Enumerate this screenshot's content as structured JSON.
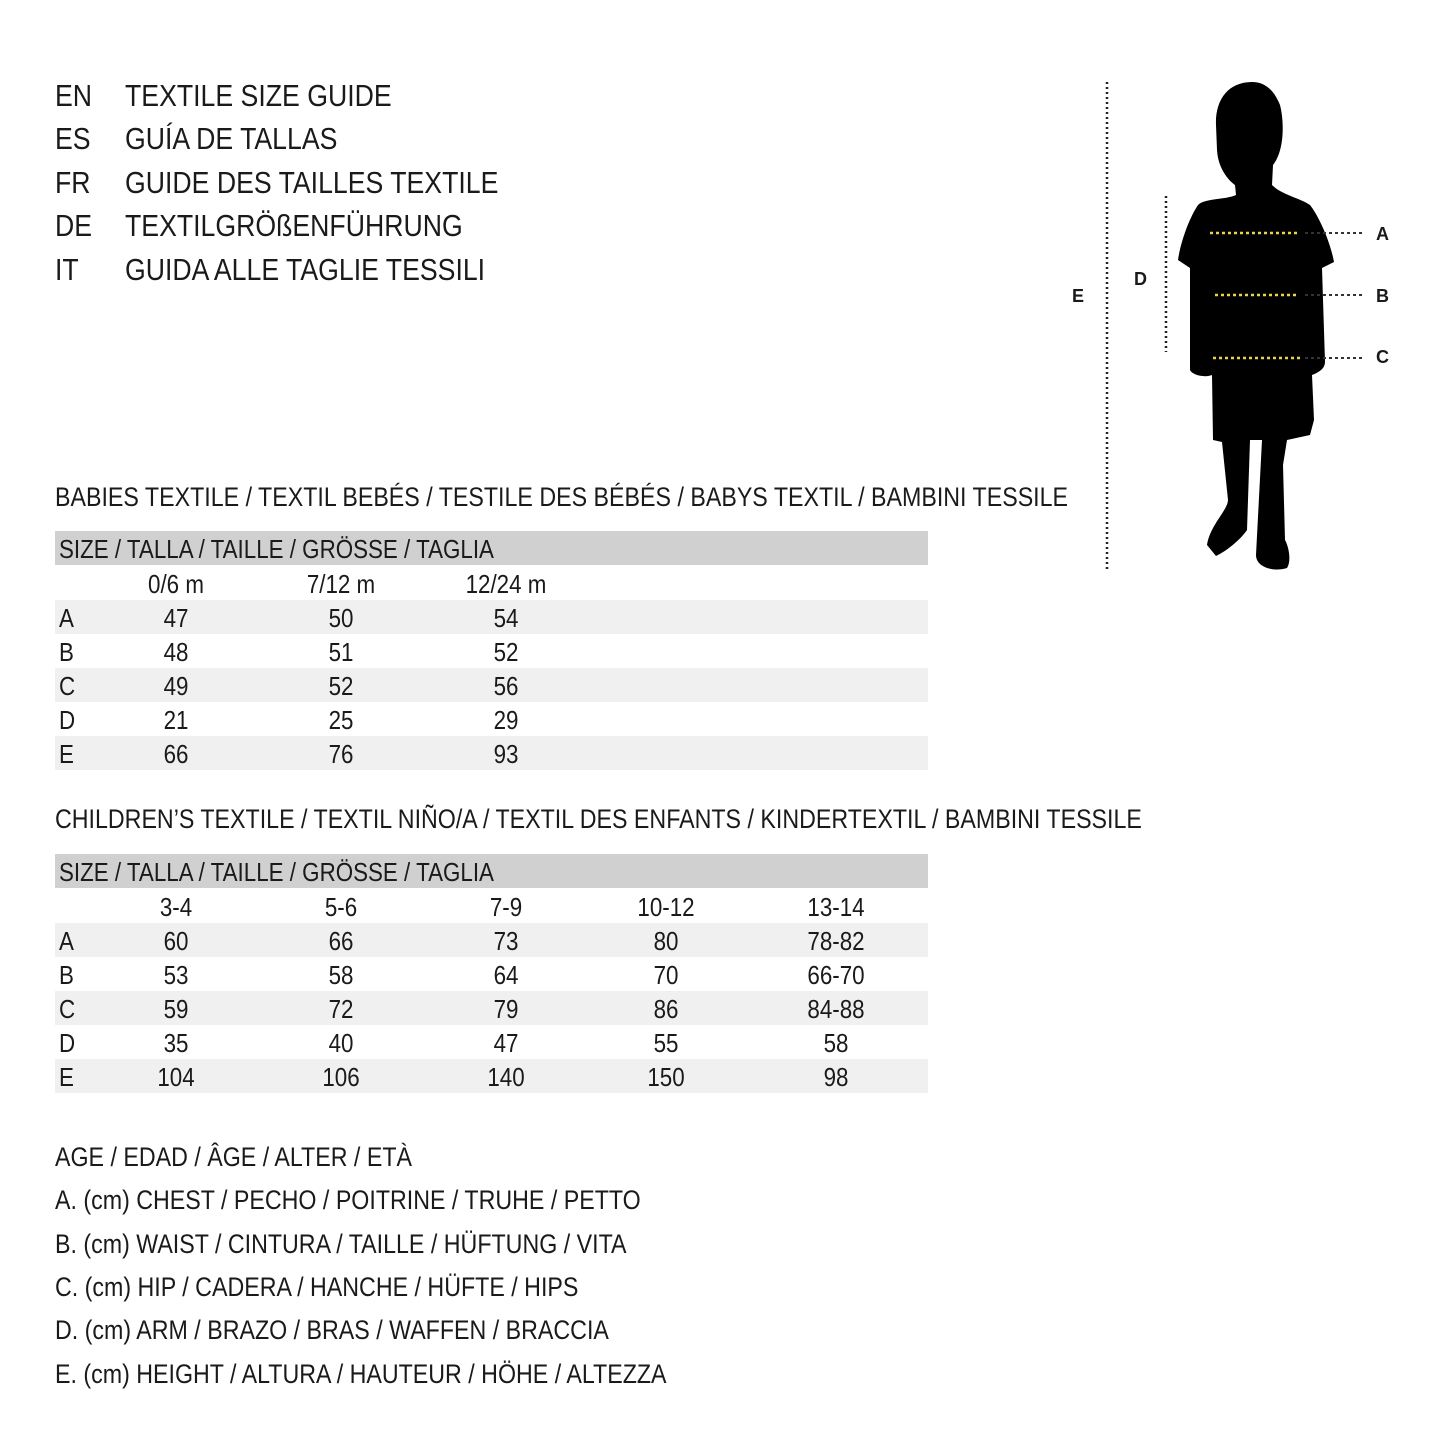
{
  "titles": [
    {
      "code": "EN",
      "text": "TEXTILE SIZE GUIDE"
    },
    {
      "code": "ES",
      "text": "GUÍA DE TALLAS"
    },
    {
      "code": "FR",
      "text": "GUIDE DES TAILLES TEXTILE"
    },
    {
      "code": "DE",
      "text": "TEXTILGRÖßENFÜHRUNG"
    },
    {
      "code": "IT",
      "text": "GUIDA ALLE TAGLIE TESSILI"
    }
  ],
  "figure": {
    "labels": {
      "A": "A",
      "B": "B",
      "C": "C",
      "D": "D",
      "E": "E"
    },
    "measure_color": "#e8d44a"
  },
  "babies": {
    "heading": "BABIES TEXTILE / TEXTIL BEBÉS / TESTILE DES BÉBÉS / BABYS TEXTIL / BAMBINI TESSILE",
    "size_header": "SIZE / TALLA / TAILLE / GRÖSSE / TAGLIA",
    "columns": [
      "0/6 m",
      "7/12 m",
      "12/24 m"
    ],
    "rows": [
      {
        "label": "A",
        "values": [
          "47",
          "50",
          "54"
        ]
      },
      {
        "label": "B",
        "values": [
          "48",
          "51",
          "52"
        ]
      },
      {
        "label": "C",
        "values": [
          "49",
          "52",
          "56"
        ]
      },
      {
        "label": "D",
        "values": [
          "21",
          "25",
          "29"
        ]
      },
      {
        "label": "E",
        "values": [
          "66",
          "76",
          "93"
        ]
      }
    ]
  },
  "children": {
    "heading": "CHILDREN’S TEXTILE / TEXTIL NIÑO/A / TEXTIL DES ENFANTS / KINDERTEXTIL / BAMBINI TESSILE",
    "size_header": "SIZE / TALLA / TAILLE / GRÖSSE / TAGLIA",
    "columns": [
      "3-4",
      "5-6",
      "7-9",
      "10-12",
      "13-14"
    ],
    "rows": [
      {
        "label": "A",
        "values": [
          "60",
          "66",
          "73",
          "80",
          "78-82"
        ]
      },
      {
        "label": "B",
        "values": [
          "53",
          "58",
          "64",
          "70",
          "66-70"
        ]
      },
      {
        "label": "C",
        "values": [
          "59",
          "72",
          "79",
          "86",
          "84-88"
        ]
      },
      {
        "label": "D",
        "values": [
          "35",
          "40",
          "47",
          "55",
          "58"
        ]
      },
      {
        "label": "E",
        "values": [
          "104",
          "106",
          "140",
          "150",
          "98"
        ]
      }
    ]
  },
  "legend": [
    "AGE / EDAD / ÂGE / ALTER / ETÀ",
    "A. (cm) CHEST / PECHO / POITRINE / TRUHE / PETTO",
    "B. (cm) WAIST / CINTURA / TAILLE / HÜFTUNG / VITA",
    "C. (cm) HIP / CADERA / HANCHE / HÜFTE / HIPS",
    "D. (cm) ARM / BRAZO / BRAS / WAFFEN / BRACCIA",
    "E. (cm) HEIGHT / ALTURA / HAUTEUR / HÖHE / ALTEZZA"
  ]
}
